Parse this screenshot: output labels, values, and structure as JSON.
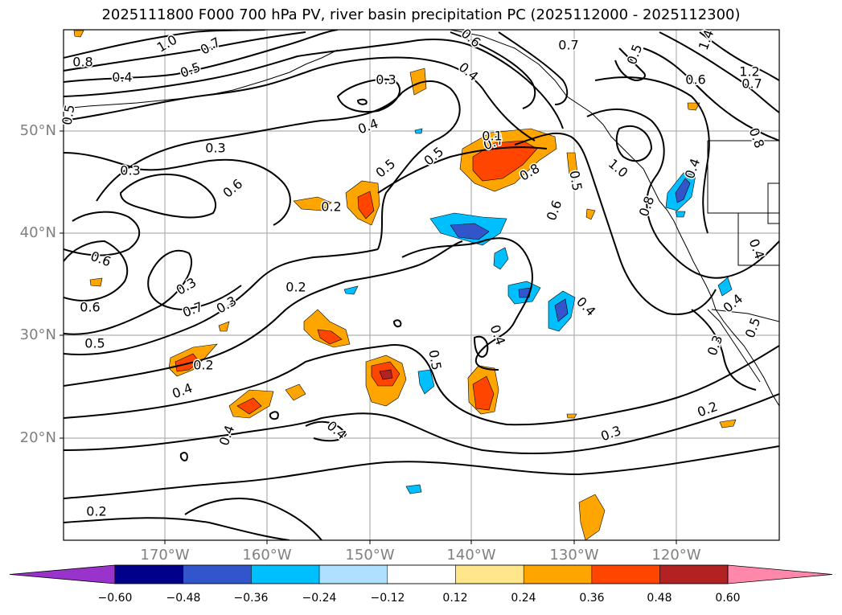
{
  "title": "2025111800 F000 700 hPa PV, river basin precipitation PC (2025112000 - 2025112300)",
  "lat_labels": [
    "50°N",
    "40°N",
    "30°N",
    "20°N"
  ],
  "lon_labels": [
    "170°W",
    "160°W",
    "150°W",
    "140°W",
    "130°W",
    "120°W"
  ],
  "colorbar": {
    "colors": [
      "#9933cc",
      "#00008b",
      "#3355cc",
      "#00bfff",
      "#b0e0ff",
      "#ffffff",
      "#ffe68a",
      "#ffa500",
      "#ff4500",
      "#b22222",
      "#ff88aa"
    ],
    "tick_labels": [
      "−0.60",
      "−0.48",
      "−0.36",
      "−0.24",
      "−0.12",
      "0.12",
      "0.24",
      "0.36",
      "0.48",
      "0.60"
    ]
  },
  "contour_labels": [
    "1.0",
    "0.7",
    "0.8",
    "0.6",
    "0.4",
    "0.5",
    "0.5",
    "0.3",
    "0.3",
    "0.6",
    "0.2",
    "0.3",
    "0.5",
    "0.4",
    "0.5",
    "0.7",
    "0.4",
    "0.1",
    "0.8",
    "0.6",
    "0.5",
    "0.7",
    "1.0",
    "0.8",
    "0.4",
    "0.5",
    "0.6",
    "0.7",
    "1.4",
    "1.2",
    "0.8",
    "0.6",
    "0.3",
    "0.7",
    "0.6",
    "0.4",
    "0.2",
    "0.5",
    "0.3",
    "0.4",
    "0.2",
    "0.4",
    "0.4",
    "0.3",
    "0.5",
    "0.4",
    "0.4",
    "0.4",
    "0.2",
    "0.3",
    "0.5",
    "0.2"
  ]
}
